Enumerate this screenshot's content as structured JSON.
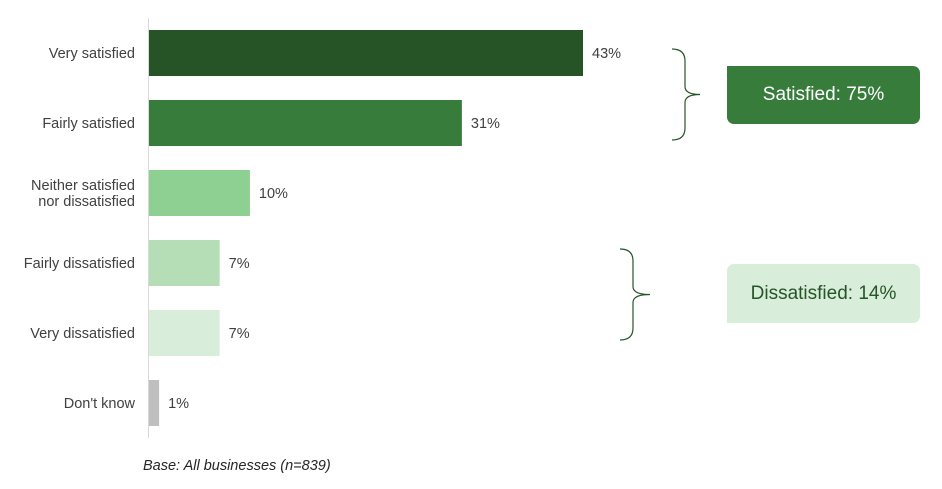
{
  "chart_data": {
    "type": "bar",
    "orientation": "horizontal",
    "title": "",
    "xlabel": "",
    "ylabel": "",
    "xlim": [
      0,
      43
    ],
    "categories": [
      [
        "Very satisfied"
      ],
      [
        "Fairly satisfied"
      ],
      [
        "Neither satisfied",
        "nor dissatisfied"
      ],
      [
        "Fairly dissatisfied"
      ],
      [
        "Very dissatisfied"
      ],
      [
        "Don't know"
      ]
    ],
    "values": [
      43,
      31,
      10,
      7,
      7,
      1
    ],
    "value_labels": [
      "43%",
      "31%",
      "10%",
      "7%",
      "7%",
      "1%"
    ],
    "bar_colors": [
      "#265427",
      "#387c3c",
      "#8ecf92",
      "#b5deb7",
      "#d8eedb",
      "#bfbfbf"
    ],
    "grid": false,
    "groups": [
      {
        "label": "Satisfied: 75%",
        "categories": [
          0,
          1
        ],
        "box_color": "#387c3c",
        "text_color": "#ffffff",
        "bracket_color": "#265427"
      },
      {
        "label": "Dissatisfied: 14%",
        "categories": [
          3,
          4
        ],
        "box_color": "#d8eedb",
        "text_color": "#265427",
        "bracket_color": "#265427"
      }
    ]
  },
  "footnote": "Base: All businesses (n=839)"
}
